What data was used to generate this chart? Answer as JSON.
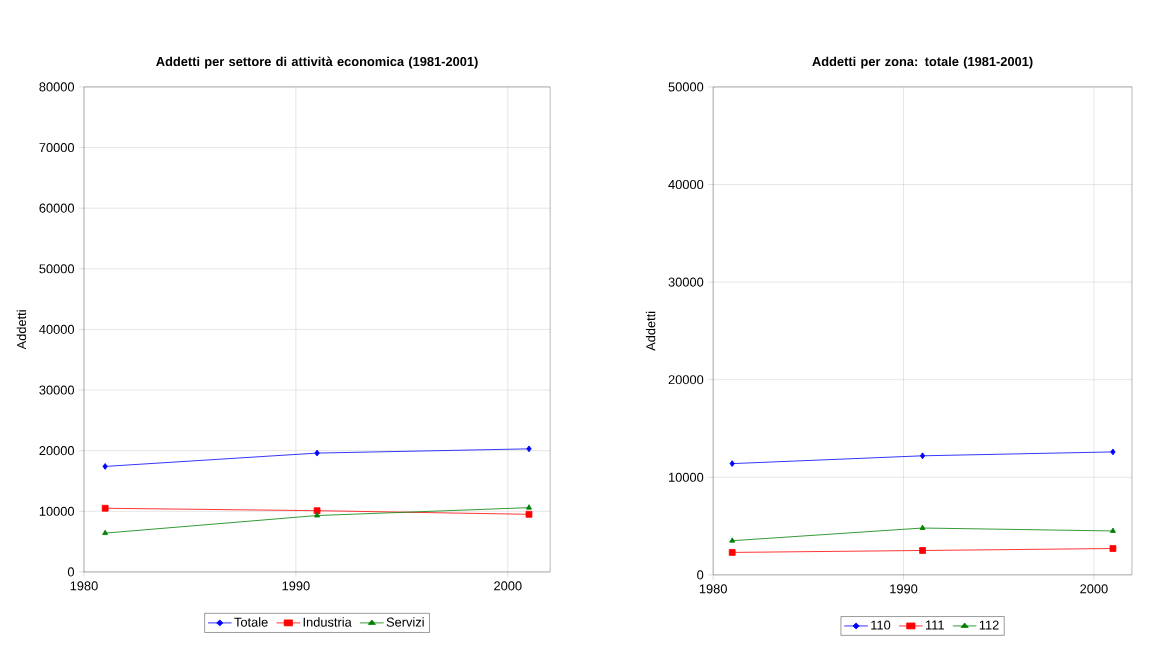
{
  "chart_data": [
    {
      "type": "line",
      "title": "Addetti per settore di attività economica (1981-2001)",
      "ylabel": "Addetti",
      "x": [
        1981,
        1991,
        2001
      ],
      "xlim": [
        1980,
        2002
      ],
      "xticks": [
        1980,
        1990,
        2000
      ],
      "ylim": [
        0,
        80000
      ],
      "yticks": [
        0,
        10000,
        20000,
        30000,
        40000,
        50000,
        60000,
        70000,
        80000
      ],
      "grid": true,
      "legend": "bottom",
      "series": [
        {
          "name": "Totale",
          "color": "#0000ff",
          "marker": "diamond",
          "values": [
            17400,
            19600,
            20300
          ]
        },
        {
          "name": "Industria",
          "color": "#ff0000",
          "marker": "square",
          "values": [
            10500,
            10100,
            9500
          ]
        },
        {
          "name": "Servizi",
          "color": "#008000",
          "marker": "triangle",
          "values": [
            6400,
            9300,
            10600
          ]
        }
      ]
    },
    {
      "type": "line",
      "title": "Addetti per zona: totale (1981-2001)",
      "ylabel": "Addetti",
      "x": [
        1981,
        1991,
        2001
      ],
      "xlim": [
        1980,
        2002
      ],
      "xticks": [
        1980,
        1990,
        2000
      ],
      "ylim": [
        0,
        50000
      ],
      "yticks": [
        0,
        10000,
        20000,
        30000,
        40000,
        50000
      ],
      "grid": true,
      "legend": "bottom",
      "series": [
        {
          "name": "110",
          "color": "#0000ff",
          "marker": "diamond",
          "values": [
            11400,
            12200,
            12600
          ]
        },
        {
          "name": "111",
          "color": "#ff0000",
          "marker": "square",
          "values": [
            2300,
            2500,
            2700
          ]
        },
        {
          "name": "112",
          "color": "#008000",
          "marker": "triangle",
          "values": [
            3500,
            4800,
            4500
          ]
        }
      ]
    }
  ]
}
